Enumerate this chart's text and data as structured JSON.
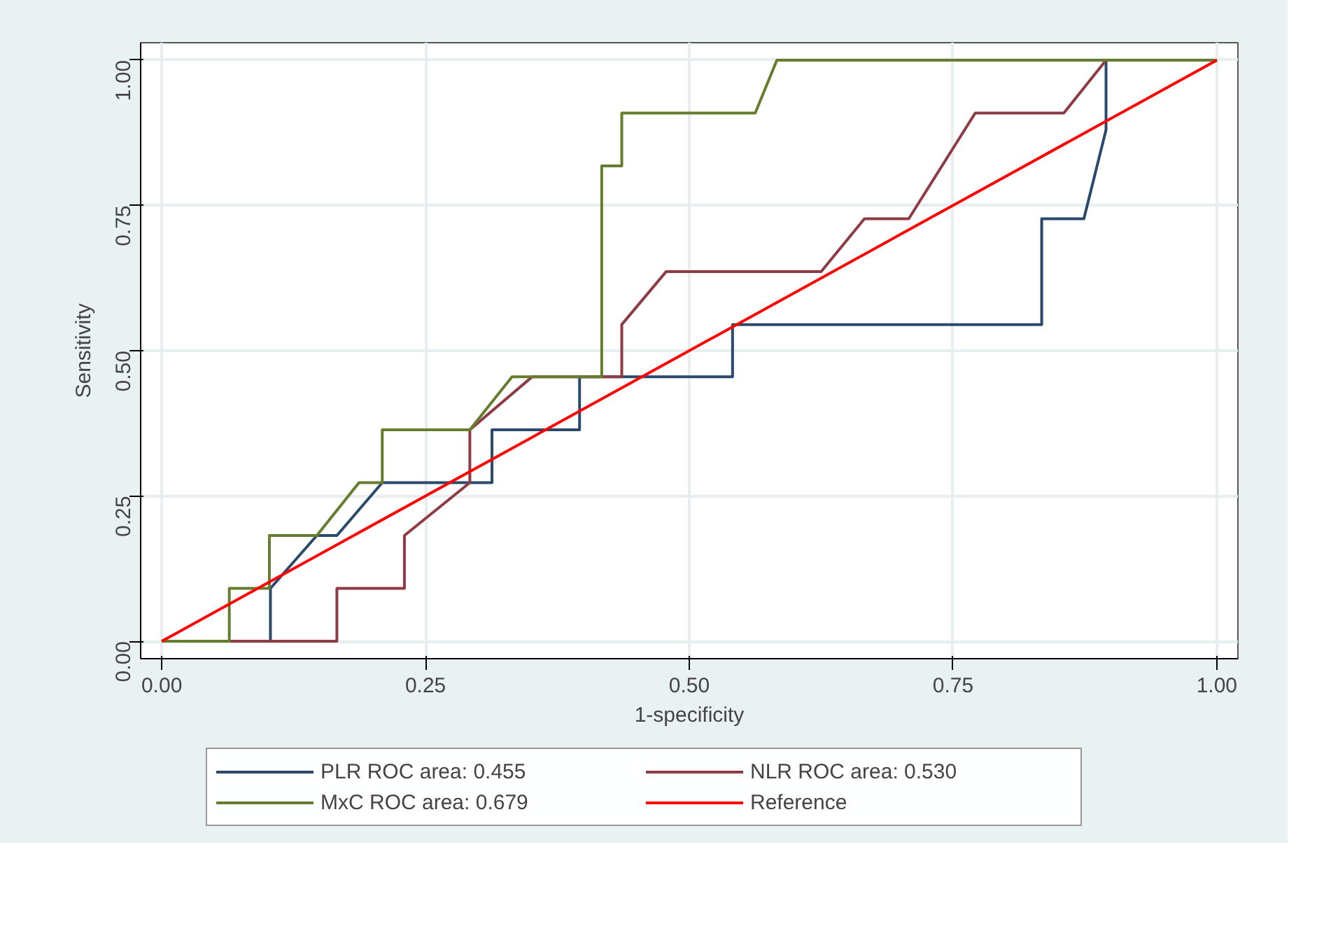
{
  "chart_data": {
    "type": "line",
    "xlabel": "1-specificity",
    "ylabel": "Sensitivity",
    "xlim": [
      -0.02,
      1.02
    ],
    "ylim": [
      -0.03,
      1.03
    ],
    "xticks": [
      {
        "value": 0,
        "label": "0.00"
      },
      {
        "value": 0.25,
        "label": "0.25"
      },
      {
        "value": 0.5,
        "label": "0.50"
      },
      {
        "value": 0.75,
        "label": "0.75"
      },
      {
        "value": 1,
        "label": "1.00"
      }
    ],
    "yticks": [
      {
        "value": 0,
        "label": "0.00"
      },
      {
        "value": 0.25,
        "label": "0.25"
      },
      {
        "value": 0.5,
        "label": "0.50"
      },
      {
        "value": 0.75,
        "label": "0.75"
      },
      {
        "value": 1,
        "label": "1.00"
      }
    ],
    "grid": true,
    "legend": "bottom",
    "marker": "none",
    "line_style": "solid",
    "series": [
      {
        "name": "PLR ROC area: 0.455",
        "color": "#2b4a6b",
        "x": [
          0,
          0.103,
          0.103,
          0.147,
          0.166,
          0.209,
          0.313,
          0.313,
          0.396,
          0.396,
          0.541,
          0.541,
          0.834,
          0.834,
          0.874,
          0.895,
          0.895,
          1
        ],
        "values": [
          0,
          0,
          0.091,
          0.182,
          0.182,
          0.273,
          0.273,
          0.364,
          0.364,
          0.455,
          0.455,
          0.545,
          0.545,
          0.727,
          0.727,
          0.88,
          1,
          1
        ]
      },
      {
        "name": "NLR ROC area: 0.530",
        "color": "#8e3b45",
        "x": [
          0,
          0.166,
          0.166,
          0.23,
          0.23,
          0.292,
          0.292,
          0.351,
          0.436,
          0.436,
          0.478,
          0.625,
          0.666,
          0.708,
          0.771,
          0.855,
          0.895,
          1
        ],
        "values": [
          0,
          0,
          0.091,
          0.091,
          0.182,
          0.273,
          0.364,
          0.455,
          0.455,
          0.545,
          0.636,
          0.636,
          0.727,
          0.727,
          0.909,
          0.909,
          1,
          1
        ]
      },
      {
        "name": "MxC ROC area: 0.679",
        "color": "#667c2e",
        "x": [
          0,
          0.064,
          0.064,
          0.102,
          0.102,
          0.147,
          0.187,
          0.209,
          0.209,
          0.292,
          0.332,
          0.417,
          0.417,
          0.436,
          0.436,
          0.5625,
          0.583,
          1
        ],
        "values": [
          0,
          0,
          0.091,
          0.091,
          0.182,
          0.182,
          0.273,
          0.273,
          0.364,
          0.364,
          0.455,
          0.455,
          0.818,
          0.818,
          0.909,
          0.909,
          1,
          1
        ]
      },
      {
        "name": "Reference",
        "color": "#ff0000",
        "x": [
          0,
          1
        ],
        "values": [
          0,
          1
        ]
      }
    ]
  }
}
